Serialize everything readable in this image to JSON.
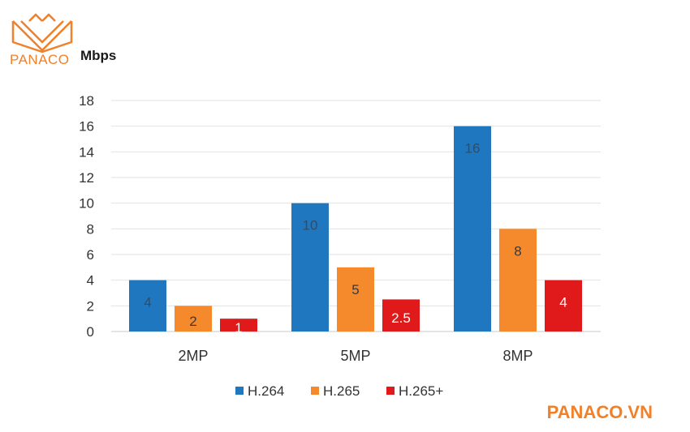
{
  "brand": {
    "logo_text": "PANACO",
    "watermark": "PANACO.VN",
    "color": "#f0802a"
  },
  "chart_data": {
    "type": "bar",
    "title": "",
    "ylabel": "Mbps",
    "xlabel": "",
    "categories": [
      "2MP",
      "5MP",
      "8MP"
    ],
    "series": [
      {
        "name": "H.264",
        "values": [
          4,
          10,
          16
        ],
        "color": "#1f77c0",
        "label_color": "#3a4a5a"
      },
      {
        "name": "H.265",
        "values": [
          2,
          5,
          8
        ],
        "color": "#f58a2c",
        "label_color": "#3a3a3a"
      },
      {
        "name": "H.265+",
        "values": [
          1,
          2.5,
          4
        ],
        "color": "#e01a1a",
        "label_color": "#ffffff"
      }
    ],
    "data_labels": [
      [
        "4",
        "10",
        "16"
      ],
      [
        "2",
        "5",
        "8"
      ],
      [
        "1",
        "2.5",
        "4"
      ]
    ],
    "ylim": [
      0,
      18
    ],
    "yticks": [
      0,
      2,
      4,
      6,
      8,
      10,
      12,
      14,
      16,
      18
    ],
    "grid": true,
    "legend": "bottom"
  }
}
